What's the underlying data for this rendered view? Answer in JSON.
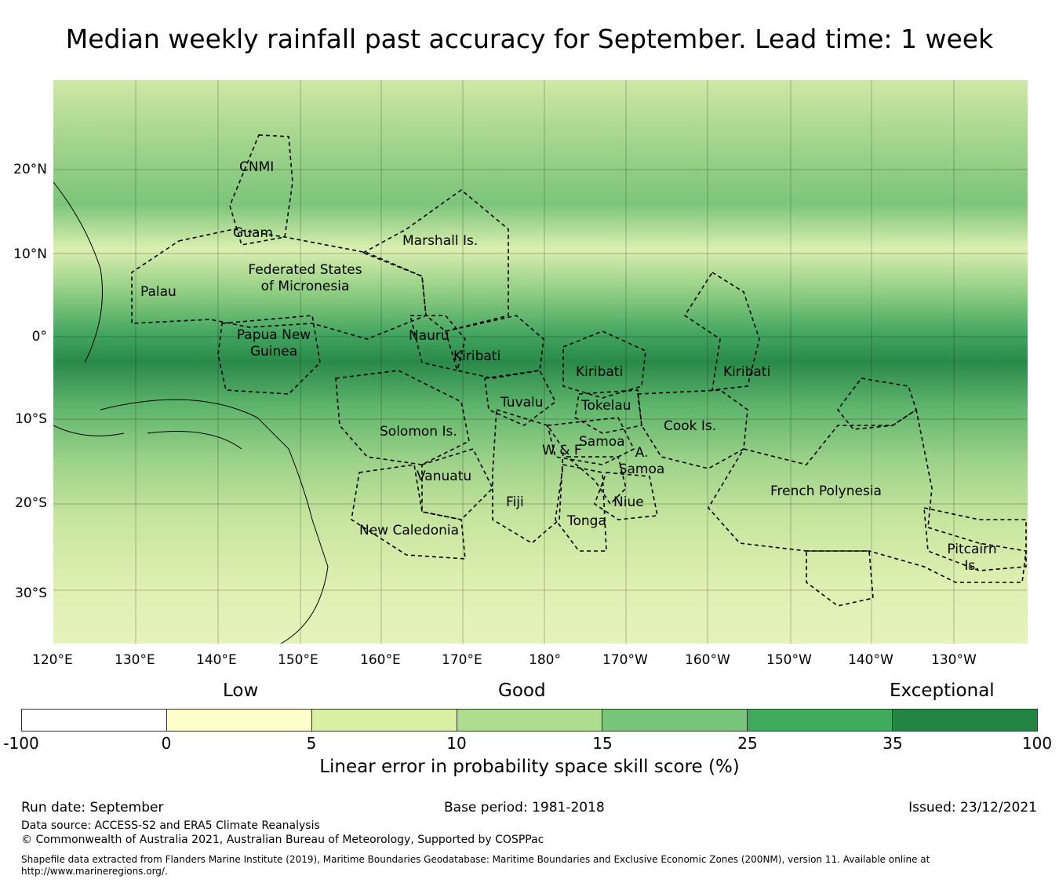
{
  "title": "Median weekly rainfall past accuracy for September. Lead time: 1 week",
  "map": {
    "regions": [
      "CNMI",
      "Guam",
      "Marshall Is.",
      "Federated States of Micronesia",
      "Palau",
      "Papua New Guinea",
      "Nauru",
      "Kiribati",
      "Kiribati",
      "Kiribati",
      "Tuvalu",
      "Tokelau",
      "Solomon Is.",
      "Samoa",
      "W & F",
      "A. Samoa",
      "Cook Is.",
      "Vanuatu",
      "Fiji",
      "Niue",
      "Tonga",
      "French Polynesia",
      "New Caledonia",
      "Pitcairn Is."
    ],
    "lon_ticks": [
      "120°E",
      "130°E",
      "140°E",
      "150°E",
      "160°E",
      "170°E",
      "180°",
      "170°W",
      "160°W",
      "150°W",
      "140°W",
      "130°W"
    ],
    "lat_ticks": [
      "20°N",
      "10°N",
      "0°",
      "10°S",
      "20°S",
      "30°S"
    ]
  },
  "legend": {
    "categories": [
      "Low",
      "Good",
      "Exceptional"
    ],
    "ticks": [
      "-100",
      "0",
      "5",
      "10",
      "15",
      "25",
      "35",
      "100"
    ],
    "colors": [
      "#ffffff",
      "#ffffcc",
      "#d9f0a3",
      "#addd8e",
      "#78c679",
      "#41ab5d",
      "#238443"
    ],
    "label": "Linear error in probability space skill score (%)"
  },
  "footer": {
    "run_date": "Run date: September",
    "base_period": "Base period: 1981-2018",
    "issued": "Issued: 23/12/2021",
    "data_source": "Data source: ACCESS-S2 and ERA5 Climate Reanalysis",
    "copyright": "© Commonwealth of Australia 2021, Australian Bureau of Meteorology, Supported by COSPPac",
    "shapefile": "Shapefile data extracted from Flanders Marine Institute (2019), Maritime Boundaries Geodatabase: Maritime Boundaries and Exclusive Economic Zones (200NM), version 11. Available online at http://www.marineregions.org/."
  }
}
